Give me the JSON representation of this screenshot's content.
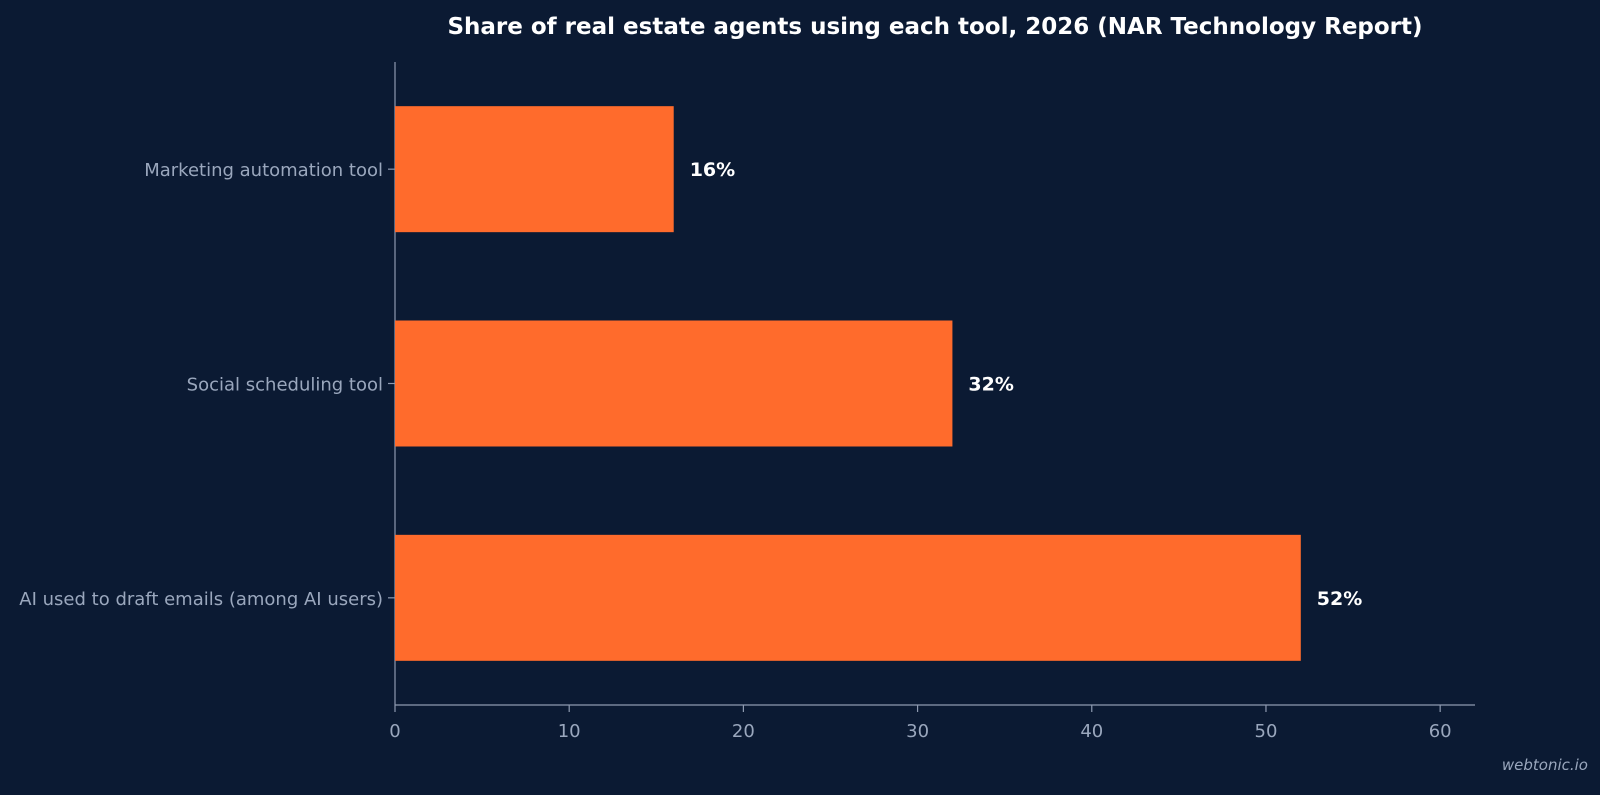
{
  "chart_data": {
    "type": "bar",
    "orientation": "horizontal",
    "title": "Share of real estate agents using each tool, 2026 (NAR Technology Report)",
    "categories": [
      "Marketing automation tool",
      "Social scheduling tool",
      "AI used to draft emails (among AI users)"
    ],
    "values": [
      16,
      32,
      52
    ],
    "value_labels": [
      "16%",
      "32%",
      "52%"
    ],
    "xlim": [
      0,
      62
    ],
    "xticks": [
      0,
      10,
      20,
      30,
      40,
      50,
      60
    ],
    "xlabel": "",
    "ylabel": "",
    "grid": false,
    "colors": {
      "background": "#0b1a33",
      "bar": "#ff6b2c",
      "axis": "#8e9ab0",
      "text_muted": "#9aa7bd",
      "text_strong": "#ffffff"
    }
  },
  "watermark": "webtonic.io"
}
